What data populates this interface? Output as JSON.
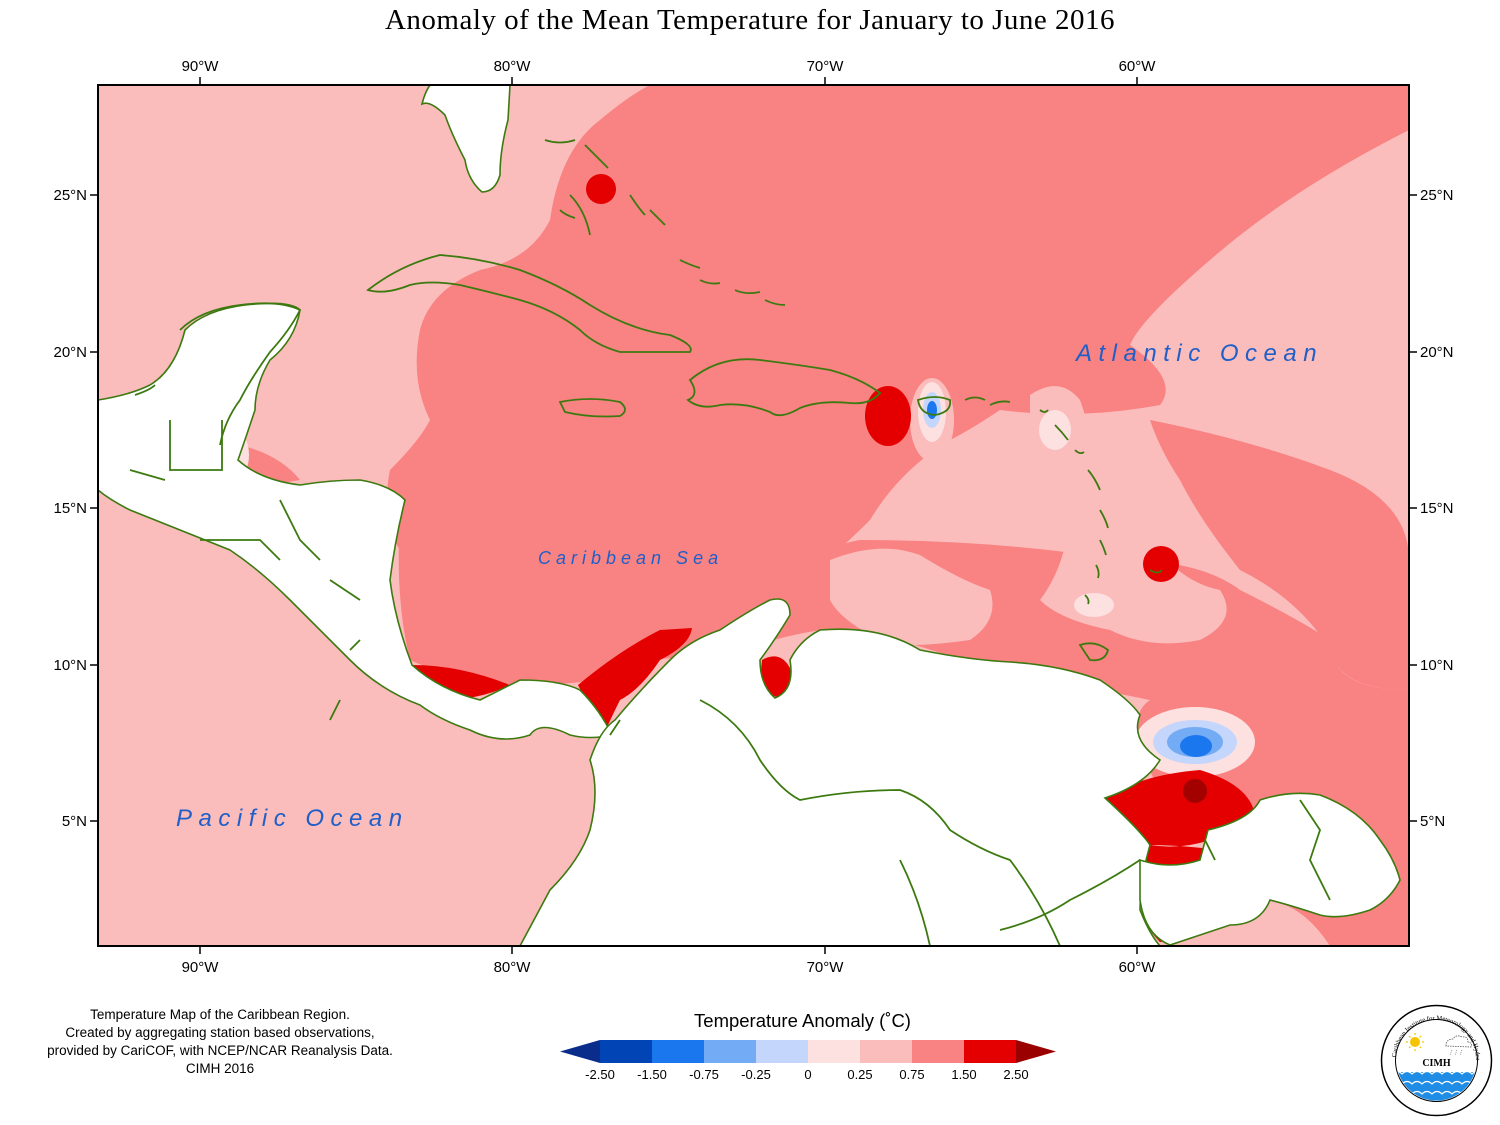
{
  "title": "Anomaly of the Mean Temperature for January to June 2016",
  "axes": {
    "lon_ticks": [
      "90°W",
      "80°W",
      "70°W",
      "60°W"
    ],
    "lat_ticks": [
      "25°N",
      "20°N",
      "15°N",
      "10°N",
      "5°N"
    ]
  },
  "map_labels": {
    "atlantic": "Atlantic Ocean",
    "caribbean": "Caribbean Sea",
    "pacific": "Pacific Ocean"
  },
  "footnote": [
    "Temperature Map of the Caribbean Region.",
    "Created by aggregating station based observations,",
    "provided by CariCOF, with NCEP/NCAR Reanalysis Data.",
    "CIMH 2016"
  ],
  "legend": {
    "title": "Temperature Anomaly (˚C)",
    "labels": [
      "-2.50",
      "-1.50",
      "-0.75",
      "-0.25",
      "0",
      "0.25",
      "0.75",
      "1.50",
      "2.50"
    ],
    "colors": [
      "#0a2d8c",
      "#0044b5",
      "#1b77ee",
      "#74abf5",
      "#c4d6fb",
      "#fde0e0",
      "#fbbcbc",
      "#f98282",
      "#e40000",
      "#9b0000"
    ]
  },
  "colors": {
    "land_outline": "#3c7a10",
    "ocean_text": "#1f5fc8",
    "light_pink": "#fbbcbc",
    "salmon": "#f98282",
    "red": "#e40000",
    "dark_red": "#a30000",
    "pale_pink": "#fde0e0"
  },
  "logo": {
    "arc_text": "Caribbean Institute for Meteorology and Hydrology",
    "name": "CIMH",
    "icons": [
      "sun-icon",
      "cloud-icon",
      "waves-icon"
    ]
  }
}
